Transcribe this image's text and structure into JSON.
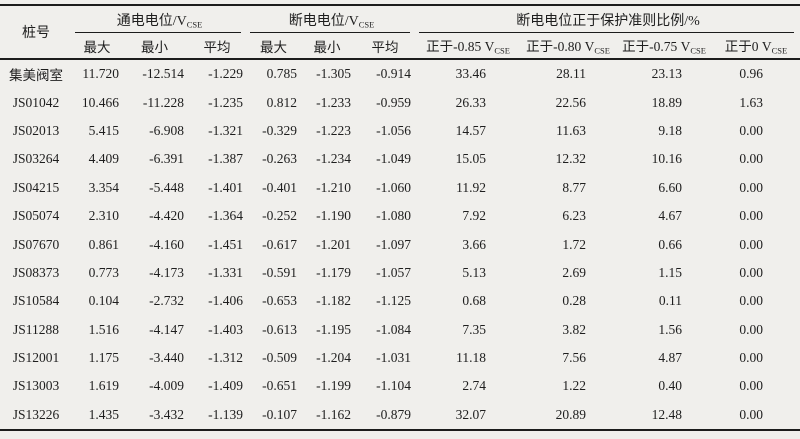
{
  "colors": {
    "background": "#f0efec",
    "text": "#1e1e1e",
    "rule": "#1c1c1c"
  },
  "table": {
    "pile_header": "桩号",
    "groups": [
      {
        "prefix": "通电电位/V",
        "sub": "CSE"
      },
      {
        "prefix": "断电电位/V",
        "sub": "CSE"
      },
      {
        "label": "断电电位正于保护准则比例/%"
      }
    ],
    "subheaders": [
      {
        "label": "最大"
      },
      {
        "label": "最小"
      },
      {
        "label": "平均"
      },
      {
        "label": "最大"
      },
      {
        "label": "最小"
      },
      {
        "label": "平均"
      },
      {
        "prefix": "正于-0.85 V",
        "sub": "CSE"
      },
      {
        "prefix": "正于-0.80 V",
        "sub": "CSE"
      },
      {
        "prefix": "正于-0.75 V",
        "sub": "CSE"
      },
      {
        "prefix": "正于0 V",
        "sub": "CSE"
      }
    ],
    "rows": [
      [
        "集美阀室",
        "11.720",
        "-12.514",
        "-1.229",
        "0.785",
        "-1.305",
        "-0.914",
        "33.46",
        "28.11",
        "23.13",
        "0.96"
      ],
      [
        "JS01042",
        "10.466",
        "-11.228",
        "-1.235",
        "0.812",
        "-1.233",
        "-0.959",
        "26.33",
        "22.56",
        "18.89",
        "1.63"
      ],
      [
        "JS02013",
        "5.415",
        "-6.908",
        "-1.321",
        "-0.329",
        "-1.223",
        "-1.056",
        "14.57",
        "11.63",
        "9.18",
        "0.00"
      ],
      [
        "JS03264",
        "4.409",
        "-6.391",
        "-1.387",
        "-0.263",
        "-1.234",
        "-1.049",
        "15.05",
        "12.32",
        "10.16",
        "0.00"
      ],
      [
        "JS04215",
        "3.354",
        "-5.448",
        "-1.401",
        "-0.401",
        "-1.210",
        "-1.060",
        "11.92",
        "8.77",
        "6.60",
        "0.00"
      ],
      [
        "JS05074",
        "2.310",
        "-4.420",
        "-1.364",
        "-0.252",
        "-1.190",
        "-1.080",
        "7.92",
        "6.23",
        "4.67",
        "0.00"
      ],
      [
        "JS07670",
        "0.861",
        "-4.160",
        "-1.451",
        "-0.617",
        "-1.201",
        "-1.097",
        "3.66",
        "1.72",
        "0.66",
        "0.00"
      ],
      [
        "JS08373",
        "0.773",
        "-4.173",
        "-1.331",
        "-0.591",
        "-1.179",
        "-1.057",
        "5.13",
        "2.69",
        "1.15",
        "0.00"
      ],
      [
        "JS10584",
        "0.104",
        "-2.732",
        "-1.406",
        "-0.653",
        "-1.182",
        "-1.125",
        "0.68",
        "0.28",
        "0.11",
        "0.00"
      ],
      [
        "JS11288",
        "1.516",
        "-4.147",
        "-1.403",
        "-0.613",
        "-1.195",
        "-1.084",
        "7.35",
        "3.82",
        "1.56",
        "0.00"
      ],
      [
        "JS12001",
        "1.175",
        "-3.440",
        "-1.312",
        "-0.509",
        "-1.204",
        "-1.031",
        "11.18",
        "7.56",
        "4.87",
        "0.00"
      ],
      [
        "JS13003",
        "1.619",
        "-4.009",
        "-1.409",
        "-0.651",
        "-1.199",
        "-1.104",
        "2.74",
        "1.22",
        "0.40",
        "0.00"
      ],
      [
        "JS13226",
        "1.435",
        "-3.432",
        "-1.139",
        "-0.107",
        "-1.162",
        "-0.879",
        "32.07",
        "20.89",
        "12.48",
        "0.00"
      ]
    ]
  }
}
